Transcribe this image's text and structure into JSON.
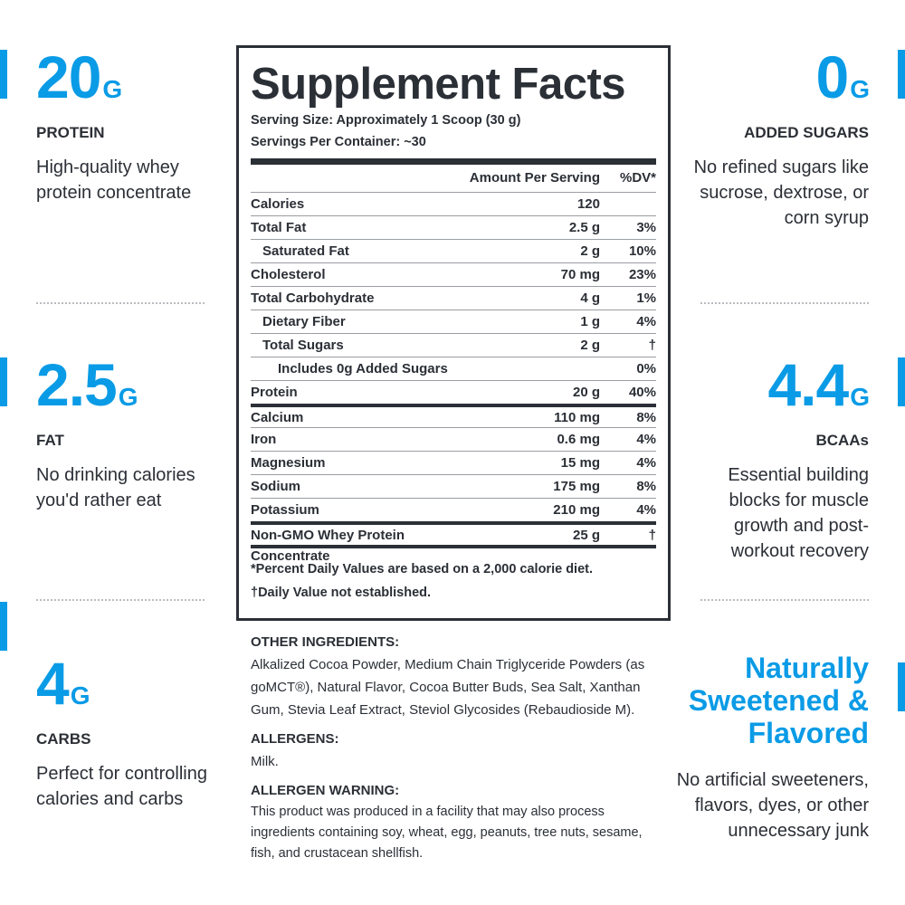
{
  "left": [
    {
      "big": "20",
      "unit": "G",
      "label": "PROTEIN",
      "desc": "High-quality whey protein concentrate"
    },
    {
      "big": "2.5",
      "unit": "G",
      "label": "FAT",
      "desc": "No drinking calories you'd rather eat"
    },
    {
      "big": "4",
      "unit": "G",
      "label": "CARBS",
      "desc": "Perfect for controlling calories and carbs"
    }
  ],
  "right": [
    {
      "big": "0",
      "unit": "G",
      "label": "ADDED SUGARS",
      "desc": "No refined sugars like sucrose, dextrose, or corn syrup"
    },
    {
      "big": "4.4",
      "unit": "G",
      "label": "BCAAs",
      "desc": "Essential building blocks for muscle growth and post-workout recovery"
    }
  ],
  "feature": {
    "heading": "Naturally Sweetened & Flavored",
    "desc": "No artificial sweeteners, flavors, dyes, or other unnecessary junk"
  },
  "facts": {
    "title": "Supplement Facts",
    "serving_size": "Serving Size: Approximately 1 Scoop (30 g)",
    "servings_per_container": "Servings Per Container: ~30",
    "header": [
      "Amount Per Serving",
      "%DV*"
    ],
    "sections": [
      [
        {
          "name": "Calories",
          "amount": "120"
        },
        {
          "name": "Total Fat",
          "amount": "2.5 g",
          "dv": "3%",
          "sub": [
            {
              "name": "Saturated Fat",
              "amount": "2 g",
              "dv": "10%"
            }
          ]
        },
        {
          "name": "Cholesterol",
          "amount": "70 mg",
          "dv": "23%"
        },
        {
          "name": "Total Carbohydrate",
          "amount": "4 g",
          "dv": "1%",
          "sub": [
            {
              "name": "Dietary Fiber",
              "amount": "1 g",
              "dv": "4%"
            },
            {
              "name": "Total Sugars",
              "amount": "2 g",
              "dv": "†",
              "sub": [
                {
                  "name": "Includes 0g Added Sugars",
                  "dv": "0%"
                }
              ]
            }
          ]
        },
        {
          "name": "Protein",
          "amount": "20 g",
          "dv": "40%"
        }
      ],
      [
        {
          "name": "Calcium",
          "amount": "110 mg",
          "dv": "8%"
        },
        {
          "name": "Iron",
          "amount": "0.6 mg",
          "dv": "4%"
        },
        {
          "name": "Magnesium",
          "amount": "15 mg",
          "dv": "4%"
        },
        {
          "name": "Sodium",
          "amount": "175 mg",
          "dv": "8%"
        },
        {
          "name": "Potassium",
          "amount": "210 mg",
          "dv": "4%"
        }
      ],
      [
        {
          "name": "Non-GMO Whey Protein Concentrate",
          "amount": "25 g",
          "dv": "†"
        }
      ]
    ],
    "footnotes": [
      "*Percent Daily Values are based on a 2,000 calorie diet.",
      "†Daily Value not established."
    ]
  },
  "ingredients": [
    {
      "heading": "OTHER INGREDIENTS:",
      "text": "Alkalized Cocoa Powder, Medium Chain Triglyceride Powders (as goMCT®), Natural Flavor, Cocoa Butter Buds, Sea Salt, Xanthan Gum, Stevia Leaf Extract, Steviol Glycosides (Rebaudioside M)."
    },
    {
      "heading": "ALLERGENS:",
      "text": "Milk."
    },
    {
      "heading": "ALLERGEN WARNING:",
      "text": "This product was produced in a facility that may also process ingredients containing soy, wheat, egg, peanuts, tree nuts, sesame, fish, and crustacean shellfish."
    }
  ]
}
